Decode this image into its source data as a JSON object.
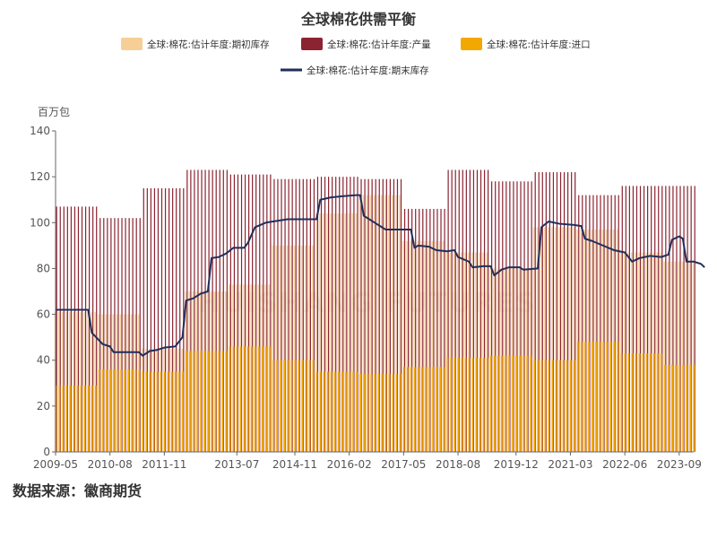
{
  "chart_data": {
    "type": "bar",
    "title": "全球棉花供需平衡",
    "ylabel": "百万包",
    "ylim": [
      0,
      140
    ],
    "yticks": [
      0,
      20,
      40,
      60,
      80,
      100,
      120,
      140
    ],
    "xtick_labels": [
      "2009-05",
      "2010-08",
      "2011-11",
      "2013-07",
      "2014-11",
      "2016-02",
      "2017-05",
      "2018-08",
      "2019-12",
      "2021-03",
      "2022-06",
      "2023-09"
    ],
    "x_start": "2009-05",
    "x_end": "2024-01",
    "grid": false,
    "legend_position": "top",
    "watermark": "HUISHANG FUTURES",
    "colors": {
      "opening_stock": "#f5cf96",
      "production": "#8b2331",
      "imports": "#f2a800",
      "ending_stock": "#1f2f5c"
    },
    "series": [
      {
        "name": "全球:棉花:估计年度:期初库存",
        "type": "bar",
        "steps": [
          {
            "from": "2009-05",
            "value": 61
          },
          {
            "from": "2010-05",
            "value": 60
          },
          {
            "from": "2011-05",
            "value": 45
          },
          {
            "from": "2012-05",
            "value": 70
          },
          {
            "from": "2013-05",
            "value": 73
          },
          {
            "from": "2014-05",
            "value": 90
          },
          {
            "from": "2015-05",
            "value": 104
          },
          {
            "from": "2016-05",
            "value": 112
          },
          {
            "from": "2017-05",
            "value": 92
          },
          {
            "from": "2018-05",
            "value": 87
          },
          {
            "from": "2019-05",
            "value": 80
          },
          {
            "from": "2020-05",
            "value": 98
          },
          {
            "from": "2021-05",
            "value": 97
          },
          {
            "from": "2022-05",
            "value": 87
          },
          {
            "from": "2023-05",
            "value": 83
          }
        ]
      },
      {
        "name": "全球:棉花:估计年度:产量",
        "type": "bar",
        "steps": [
          {
            "from": "2009-05",
            "value": 107
          },
          {
            "from": "2010-05",
            "value": 102
          },
          {
            "from": "2011-05",
            "value": 115
          },
          {
            "from": "2012-05",
            "value": 123
          },
          {
            "from": "2013-05",
            "value": 121
          },
          {
            "from": "2014-05",
            "value": 119
          },
          {
            "from": "2015-05",
            "value": 120
          },
          {
            "from": "2016-05",
            "value": 119
          },
          {
            "from": "2017-05",
            "value": 106
          },
          {
            "from": "2018-05",
            "value": 123
          },
          {
            "from": "2019-05",
            "value": 118
          },
          {
            "from": "2020-05",
            "value": 122
          },
          {
            "from": "2021-05",
            "value": 112
          },
          {
            "from": "2022-05",
            "value": 116
          },
          {
            "from": "2023-05",
            "value": 116
          }
        ]
      },
      {
        "name": "全球:棉花:估计年度:进口",
        "type": "bar",
        "steps": [
          {
            "from": "2009-05",
            "value": 29
          },
          {
            "from": "2010-05",
            "value": 36
          },
          {
            "from": "2011-05",
            "value": 35
          },
          {
            "from": "2012-05",
            "value": 44
          },
          {
            "from": "2013-05",
            "value": 46
          },
          {
            "from": "2014-05",
            "value": 40
          },
          {
            "from": "2015-05",
            "value": 35
          },
          {
            "from": "2016-05",
            "value": 34
          },
          {
            "from": "2017-05",
            "value": 37
          },
          {
            "from": "2018-05",
            "value": 41
          },
          {
            "from": "2019-05",
            "value": 42
          },
          {
            "from": "2020-05",
            "value": 40
          },
          {
            "from": "2021-05",
            "value": 48
          },
          {
            "from": "2022-05",
            "value": 43
          },
          {
            "from": "2023-05",
            "value": 38
          }
        ]
      },
      {
        "name": "全球:棉花:估计年度:期末库存",
        "type": "line",
        "points": [
          {
            "x": "2009-05",
            "y": 62
          },
          {
            "x": "2010-02",
            "y": 62
          },
          {
            "x": "2010-03",
            "y": 52
          },
          {
            "x": "2010-06",
            "y": 47
          },
          {
            "x": "2010-08",
            "y": 46
          },
          {
            "x": "2010-09",
            "y": 43.5
          },
          {
            "x": "2011-04",
            "y": 43.5
          },
          {
            "x": "2011-05",
            "y": 42
          },
          {
            "x": "2011-07",
            "y": 44
          },
          {
            "x": "2011-09",
            "y": 44.5
          },
          {
            "x": "2011-11",
            "y": 45.5
          },
          {
            "x": "2012-02",
            "y": 46
          },
          {
            "x": "2012-04",
            "y": 50
          },
          {
            "x": "2012-05",
            "y": 66
          },
          {
            "x": "2012-07",
            "y": 67
          },
          {
            "x": "2012-09",
            "y": 69
          },
          {
            "x": "2012-11",
            "y": 70
          },
          {
            "x": "2012-12",
            "y": 84.5
          },
          {
            "x": "2013-02",
            "y": 85
          },
          {
            "x": "2013-04",
            "y": 86.5
          },
          {
            "x": "2013-06",
            "y": 89
          },
          {
            "x": "2013-09",
            "y": 89
          },
          {
            "x": "2013-10",
            "y": 91
          },
          {
            "x": "2013-12",
            "y": 98
          },
          {
            "x": "2014-03",
            "y": 100
          },
          {
            "x": "2014-07",
            "y": 101
          },
          {
            "x": "2014-09",
            "y": 101.5
          },
          {
            "x": "2015-05",
            "y": 101.5
          },
          {
            "x": "2015-06",
            "y": 110
          },
          {
            "x": "2015-09",
            "y": 111
          },
          {
            "x": "2015-12",
            "y": 111.5
          },
          {
            "x": "2016-04",
            "y": 112
          },
          {
            "x": "2016-05",
            "y": 112
          },
          {
            "x": "2016-06",
            "y": 103
          },
          {
            "x": "2016-09",
            "y": 100
          },
          {
            "x": "2016-11",
            "y": 98
          },
          {
            "x": "2016-12",
            "y": 97
          },
          {
            "x": "2017-07",
            "y": 97
          },
          {
            "x": "2017-08",
            "y": 89
          },
          {
            "x": "2017-09",
            "y": 90
          },
          {
            "x": "2017-12",
            "y": 89.5
          },
          {
            "x": "2018-02",
            "y": 88
          },
          {
            "x": "2018-05",
            "y": 87.5
          },
          {
            "x": "2018-07",
            "y": 88
          },
          {
            "x": "2018-08",
            "y": 85
          },
          {
            "x": "2018-11",
            "y": 83
          },
          {
            "x": "2018-12",
            "y": 80.5
          },
          {
            "x": "2019-03",
            "y": 81
          },
          {
            "x": "2019-05",
            "y": 81
          },
          {
            "x": "2019-06",
            "y": 77
          },
          {
            "x": "2019-08",
            "y": 79.5
          },
          {
            "x": "2019-10",
            "y": 80.5
          },
          {
            "x": "2020-01",
            "y": 80.5
          },
          {
            "x": "2020-02",
            "y": 79.5
          },
          {
            "x": "2020-06",
            "y": 80
          },
          {
            "x": "2020-07",
            "y": 98
          },
          {
            "x": "2020-09",
            "y": 100.5
          },
          {
            "x": "2020-12",
            "y": 99.5
          },
          {
            "x": "2021-04",
            "y": 99
          },
          {
            "x": "2021-06",
            "y": 98.5
          },
          {
            "x": "2021-07",
            "y": 93
          },
          {
            "x": "2021-09",
            "y": 92
          },
          {
            "x": "2021-12",
            "y": 90
          },
          {
            "x": "2022-03",
            "y": 88
          },
          {
            "x": "2022-06",
            "y": 87
          },
          {
            "x": "2022-07",
            "y": 85
          },
          {
            "x": "2022-08",
            "y": 83
          },
          {
            "x": "2022-10",
            "y": 84.5
          },
          {
            "x": "2023-01",
            "y": 85.5
          },
          {
            "x": "2023-04",
            "y": 85
          },
          {
            "x": "2023-06",
            "y": 86
          },
          {
            "x": "2023-07",
            "y": 92.5
          },
          {
            "x": "2023-09",
            "y": 94
          },
          {
            "x": "2023-10",
            "y": 93
          },
          {
            "x": "2023-11",
            "y": 83
          },
          {
            "x": "2024-01",
            "y": 83
          },
          {
            "x": "2024-03",
            "y": 82
          },
          {
            "x": "2024-04",
            "y": 80.5
          }
        ]
      }
    ]
  },
  "footer": {
    "source": "数据来源：徽商期货"
  }
}
